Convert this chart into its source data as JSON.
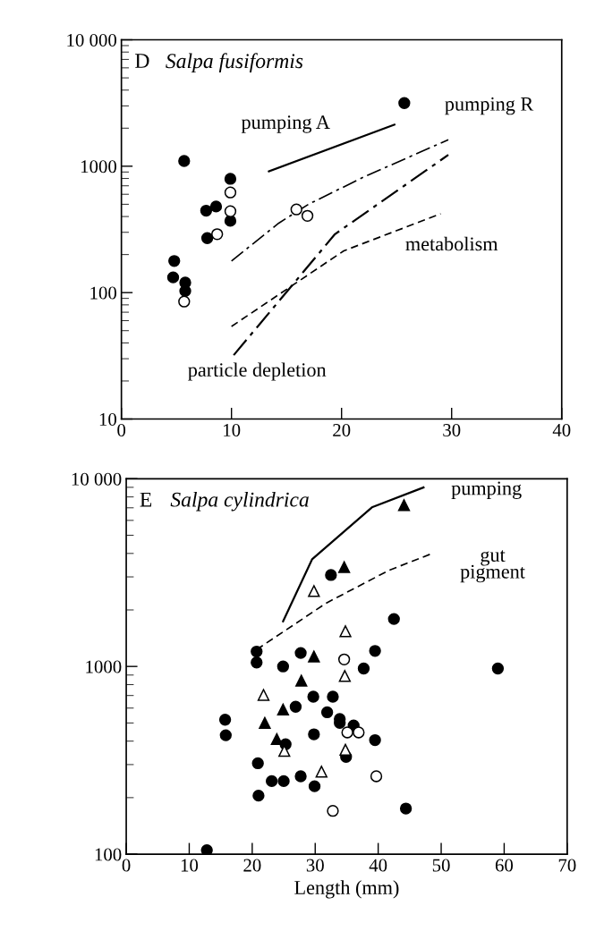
{
  "chart_data": [
    {
      "type": "scatter",
      "title": "Salpa fusiformis",
      "annotations": [
        "D",
        "pumping A",
        "pumping R",
        "metabolism",
        "particle depletion"
      ],
      "log": "y",
      "xlim": [
        0,
        40
      ],
      "xticks": [
        0,
        10,
        20,
        30,
        40
      ],
      "ylim": [
        10,
        10000
      ],
      "yticks": [
        10,
        100,
        1000,
        {
          "value": 10000,
          "label": "10 000"
        }
      ],
      "grid": false,
      "legend": false,
      "series": [
        {
          "type": "scatter",
          "marker": "circle",
          "color": "#000000",
          "x": [
            5.7,
            4.8,
            4.7,
            5.8,
            5.8,
            7.7,
            8.6,
            9.9,
            9.9,
            7.8,
            25.7
          ],
          "values": [
            1100,
            178,
            132,
            120,
            103,
            445,
            480,
            795,
            370,
            270,
            3160
          ]
        },
        {
          "type": "scatter",
          "marker": "circle",
          "color": "#ffffff",
          "x": [
            5.7,
            9.9,
            9.9,
            8.7,
            15.9,
            16.9
          ],
          "values": [
            85,
            620,
            440,
            290,
            455,
            405
          ]
        },
        {
          "type": "line",
          "line_style": "solid",
          "color": "#000000",
          "x": [
            13.4,
            24.8
          ],
          "values": [
            910,
            2130
          ]
        },
        {
          "type": "line",
          "line_style": "dashdot",
          "color": "#000000",
          "x": [
            10,
            14.3,
            17,
            22,
            29.7
          ],
          "values": [
            178,
            355,
            500,
            820,
            1620
          ]
        },
        {
          "type": "line",
          "line_style": "dashdot",
          "color": "#000000",
          "x": [
            10.2,
            19.4,
            29.7
          ],
          "values": [
            32,
            290,
            1230
          ]
        },
        {
          "type": "line",
          "line_style": "dashed",
          "color": "#000000",
          "x": [
            10,
            20.2,
            29
          ],
          "values": [
            54,
            214,
            420
          ]
        }
      ]
    },
    {
      "type": "scatter",
      "title": "Salpa cylindrica",
      "xlabel": "Length (mm)",
      "annotations": [
        "E",
        "pumping",
        "gut\npigment"
      ],
      "log": "y",
      "xlim": [
        0,
        70
      ],
      "xticks": [
        0,
        10,
        20,
        30,
        40,
        50,
        60,
        70
      ],
      "ylim": [
        100,
        10000
      ],
      "yticks": [
        100,
        1000,
        {
          "value": 10000,
          "label": "10 000"
        }
      ],
      "grid": false,
      "legend": false,
      "series": [
        {
          "type": "scatter",
          "marker": "circle",
          "color": "#000000",
          "x": [
            32.5,
            42.5,
            20.7,
            20.7,
            27.7,
            39.5,
            24.9,
            37.7,
            59.0,
            29.7,
            32.8,
            26.9,
            31.9,
            15.7,
            33.9,
            33.9,
            36.1,
            15.8,
            29.8,
            39.5,
            25.3,
            34.9,
            20.9,
            27.7,
            23.1,
            25.0,
            29.9,
            21.0,
            44.4,
            12.8
          ],
          "values": [
            3070,
            1790,
            1200,
            1050,
            1180,
            1210,
            1000,
            975,
            975,
            690,
            690,
            610,
            570,
            520,
            525,
            500,
            485,
            430,
            435,
            405,
            385,
            330,
            305,
            260,
            245,
            245,
            230,
            205,
            175,
            105
          ]
        },
        {
          "type": "scatter",
          "marker": "circle",
          "color": "#ffffff",
          "x": [
            34.6,
            35.1,
            36.9,
            39.7,
            32.8
          ],
          "values": [
            1090,
            445,
            445,
            260,
            170
          ]
        },
        {
          "type": "scatter",
          "marker": "triangle",
          "color": "#000000",
          "x": [
            44.1,
            34.6,
            29.8,
            27.8,
            24.9,
            22.0,
            23.9
          ],
          "values": [
            7240,
            3380,
            1130,
            840,
            590,
            500,
            410
          ]
        },
        {
          "type": "scatter",
          "marker": "triangle",
          "color": "#ffffff",
          "x": [
            29.8,
            34.8,
            34.7,
            21.8,
            25.1,
            34.8,
            31.0
          ],
          "values": [
            2520,
            1540,
            890,
            705,
            355,
            360,
            275
          ]
        },
        {
          "type": "line",
          "line_style": "solid",
          "color": "#000000",
          "x": [
            24.9,
            29.5,
            39.0,
            47.2
          ],
          "values": [
            1740,
            3720,
            7040,
            8990
          ]
        },
        {
          "type": "line",
          "line_style": "dashed",
          "color": "#000000",
          "x": [
            20.7,
            31.8,
            41.7,
            48.5
          ],
          "values": [
            1230,
            2180,
            3250,
            3990
          ]
        }
      ]
    }
  ]
}
